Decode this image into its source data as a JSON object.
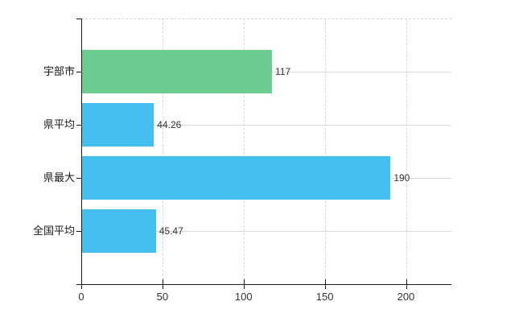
{
  "chart_data": {
    "type": "bar",
    "orientation": "horizontal",
    "title": "",
    "xlabel": "",
    "ylabel": "",
    "categories": [
      "宇部市",
      "県平均",
      "県最大",
      "全国平均"
    ],
    "values": [
      117,
      44.26,
      190,
      45.47
    ],
    "value_labels": [
      "117",
      "44.26",
      "190",
      "45.47"
    ],
    "series": [
      {
        "name": "value",
        "values": [
          117,
          44.26,
          190,
          45.47
        ]
      }
    ],
    "bar_colors": [
      "#67cb8c",
      "#3dbcee",
      "#3dbcee",
      "#3dbcee"
    ],
    "x_ticks": [
      0,
      50,
      100,
      150,
      200
    ],
    "x_tick_labels": [
      "0",
      "50",
      "100",
      "150",
      "200"
    ],
    "xlim": [
      0,
      228
    ],
    "grid": true,
    "grid_horizontal_at_bar_centers": true,
    "legend": false,
    "colors": {
      "background": "#ffffff",
      "axis": "#1a1a1a",
      "gridline": "#d9d9d9",
      "bar_highlight": "#67cb8c",
      "bar_default": "#3dbcee",
      "category_label": "#1a1a1a",
      "value_label": "#333333",
      "tick_label": "#333333"
    }
  }
}
